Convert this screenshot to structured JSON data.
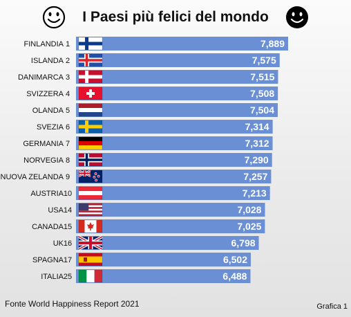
{
  "header": {
    "title": "I Paesi più felici del mondo",
    "left_icon": "smiley-outline-icon",
    "right_icon": "smiley-filled-icon"
  },
  "chart_data": {
    "type": "bar",
    "orientation": "horizontal",
    "title": "I Paesi più felici del mondo",
    "xlabel": "",
    "ylabel": "",
    "bar_color": "#6a8fd4",
    "categories": [
      "FINLANDIA",
      "ISLANDA",
      "DANIMARCA",
      "SVIZZERA",
      "OLANDA",
      "SVEZIA",
      "GERMANIA",
      "NORVEGIA",
      "NUOVA ZELANDA",
      "AUSTRIA",
      "USA",
      "CANADA",
      "UK",
      "SPAGNA",
      "ITALIA"
    ],
    "ranks": [
      "1",
      "2",
      "3",
      "4",
      "5",
      "6",
      "7",
      "8",
      "9",
      "10",
      "14",
      "15",
      "16",
      "17",
      "25"
    ],
    "flags": [
      "finland",
      "iceland",
      "denmark",
      "switzerland",
      "netherlands",
      "sweden",
      "germany",
      "norway",
      "new-zealand",
      "austria",
      "usa",
      "canada",
      "uk",
      "spain",
      "italy"
    ],
    "values": [
      7.889,
      7.575,
      7.515,
      7.508,
      7.504,
      7.314,
      7.312,
      7.29,
      7.257,
      7.213,
      7.028,
      7.025,
      6.798,
      6.502,
      6.488
    ],
    "value_labels": [
      "7,889",
      "7,575",
      "7,515",
      "7,508",
      "7,504",
      "7,314",
      "7,312",
      "7,290",
      "7,257",
      "7,213",
      "7,028",
      "7,025",
      "6,798",
      "6,502",
      "6,488"
    ]
  },
  "footer": {
    "source": "Fonte World Happiness Report 2021",
    "figure_label": "Grafica 1"
  }
}
